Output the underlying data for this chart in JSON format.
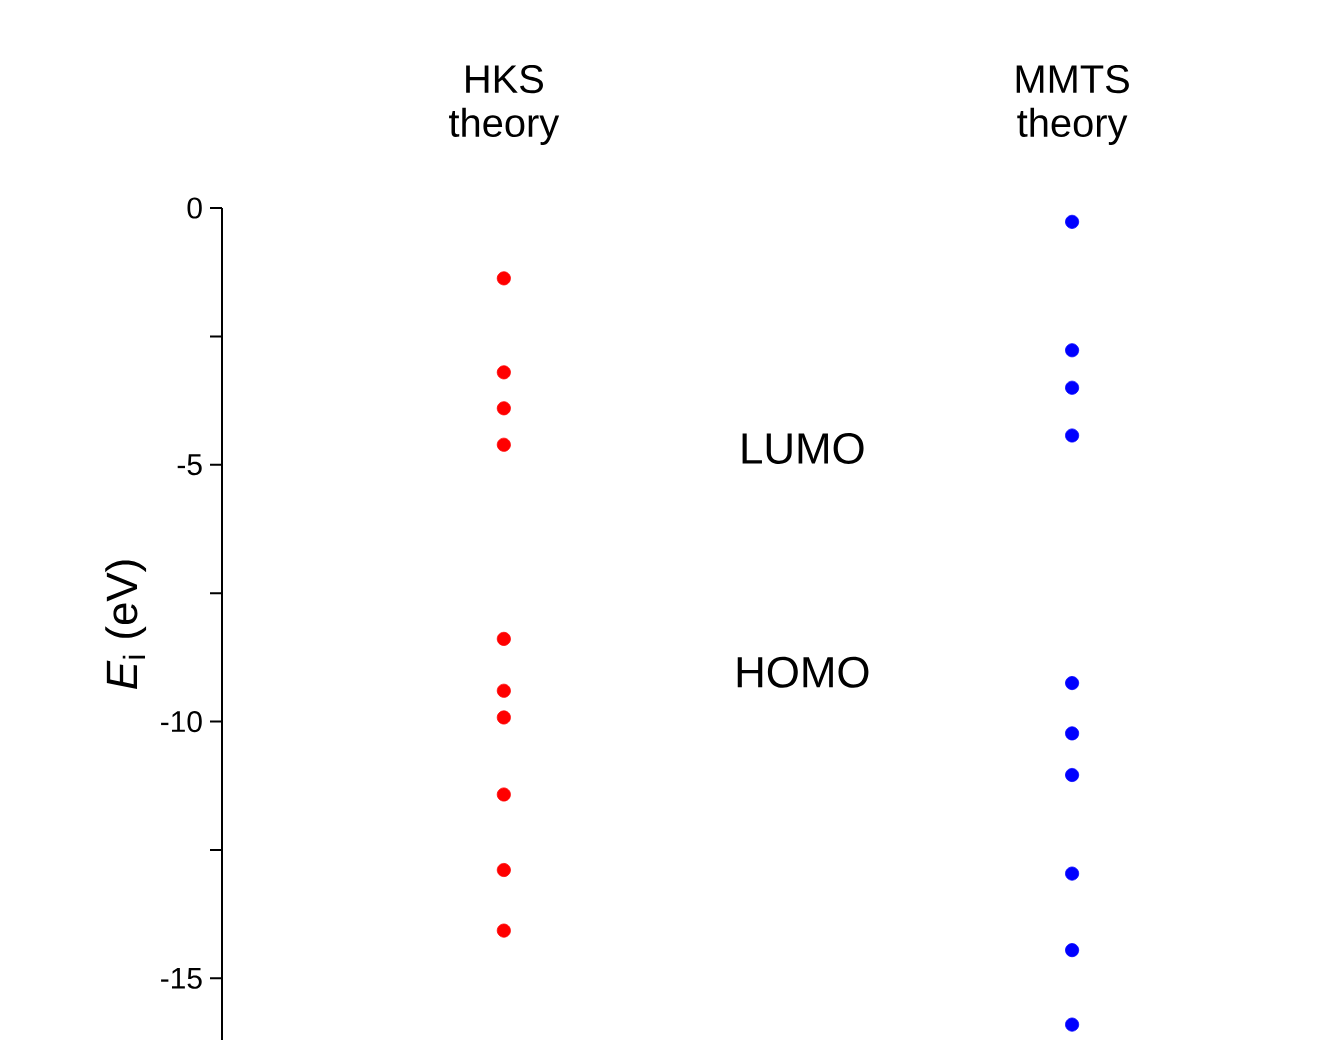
{
  "chart_data": {
    "type": "scatter",
    "categories": [
      "HKS theory",
      "MMTS theory"
    ],
    "ylabel": "*E*$_{i}$ (eV)",
    "ylim": [
      -16.2,
      0
    ],
    "yticks": [
      0,
      {
        "value": -2.5,
        "label": null
      },
      -5,
      {
        "value": -7.5,
        "label": null
      },
      -10,
      {
        "value": -12.5,
        "label": null
      },
      -15
    ],
    "marker": "circle",
    "annotations": [
      "LUMO",
      "HOMO"
    ],
    "series": [
      {
        "color": "#ff0000",
        "x": [
          "HKS theory",
          "HKS theory",
          "HKS theory",
          "HKS theory",
          "HKS theory",
          "HKS theory",
          "HKS theory",
          "HKS theory",
          "HKS theory",
          "HKS theory"
        ],
        "values": [
          -1.37,
          -3.2,
          -3.9,
          -4.61,
          -8.39,
          -9.4,
          -9.92,
          -11.42,
          -12.89,
          -14.07
        ]
      },
      {
        "color": "#0000ff",
        "x": [
          "MMTS theory",
          "MMTS theory",
          "MMTS theory",
          "MMTS theory",
          "MMTS theory",
          "MMTS theory",
          "MMTS theory",
          "MMTS theory",
          "MMTS theory",
          "MMTS theory"
        ],
        "values": [
          -0.27,
          -2.77,
          -3.5,
          -4.43,
          -9.25,
          -10.23,
          -11.04,
          -12.96,
          -14.45,
          -15.9
        ]
      }
    ]
  }
}
